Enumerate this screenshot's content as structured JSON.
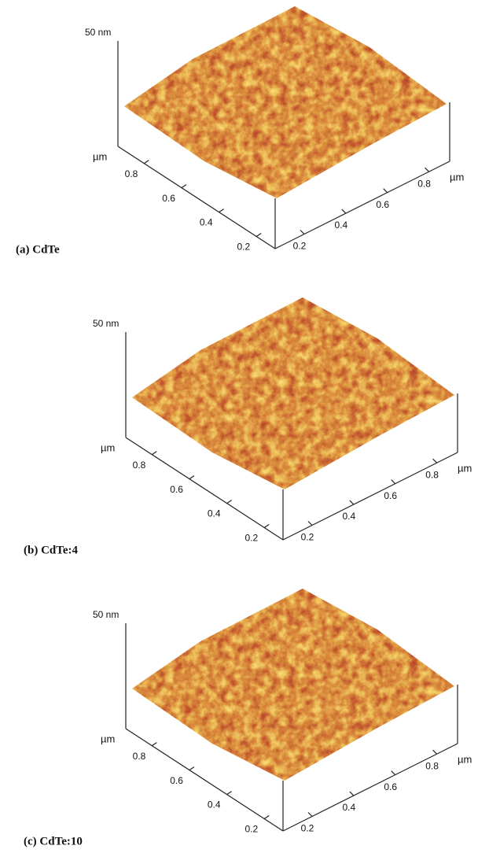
{
  "panels": [
    {
      "label": "(a) CdTe",
      "z_label": "50 nm",
      "left_axis": {
        "unit": "µm",
        "ticks": [
          "0.8",
          "0.6",
          "0.4",
          "0.2"
        ]
      },
      "right_axis": {
        "unit": "µm",
        "ticks": [
          "0.2",
          "0.4",
          "0.6",
          "0.8"
        ]
      }
    },
    {
      "label": "(b) CdTe:4",
      "z_label": "50 nm",
      "left_axis": {
        "unit": "µm",
        "ticks": [
          "0.8",
          "0.6",
          "0.4",
          "0.2"
        ]
      },
      "right_axis": {
        "unit": "µm",
        "ticks": [
          "0.2",
          "0.4",
          "0.6",
          "0.8"
        ]
      }
    },
    {
      "label": "(c) CdTe:10",
      "z_label": "50 nm",
      "left_axis": {
        "unit": "µm",
        "ticks": [
          "0.8",
          "0.6",
          "0.4",
          "0.2"
        ]
      },
      "right_axis": {
        "unit": "µm",
        "ticks": [
          "0.2",
          "0.4",
          "0.6",
          "0.8"
        ]
      }
    }
  ]
}
